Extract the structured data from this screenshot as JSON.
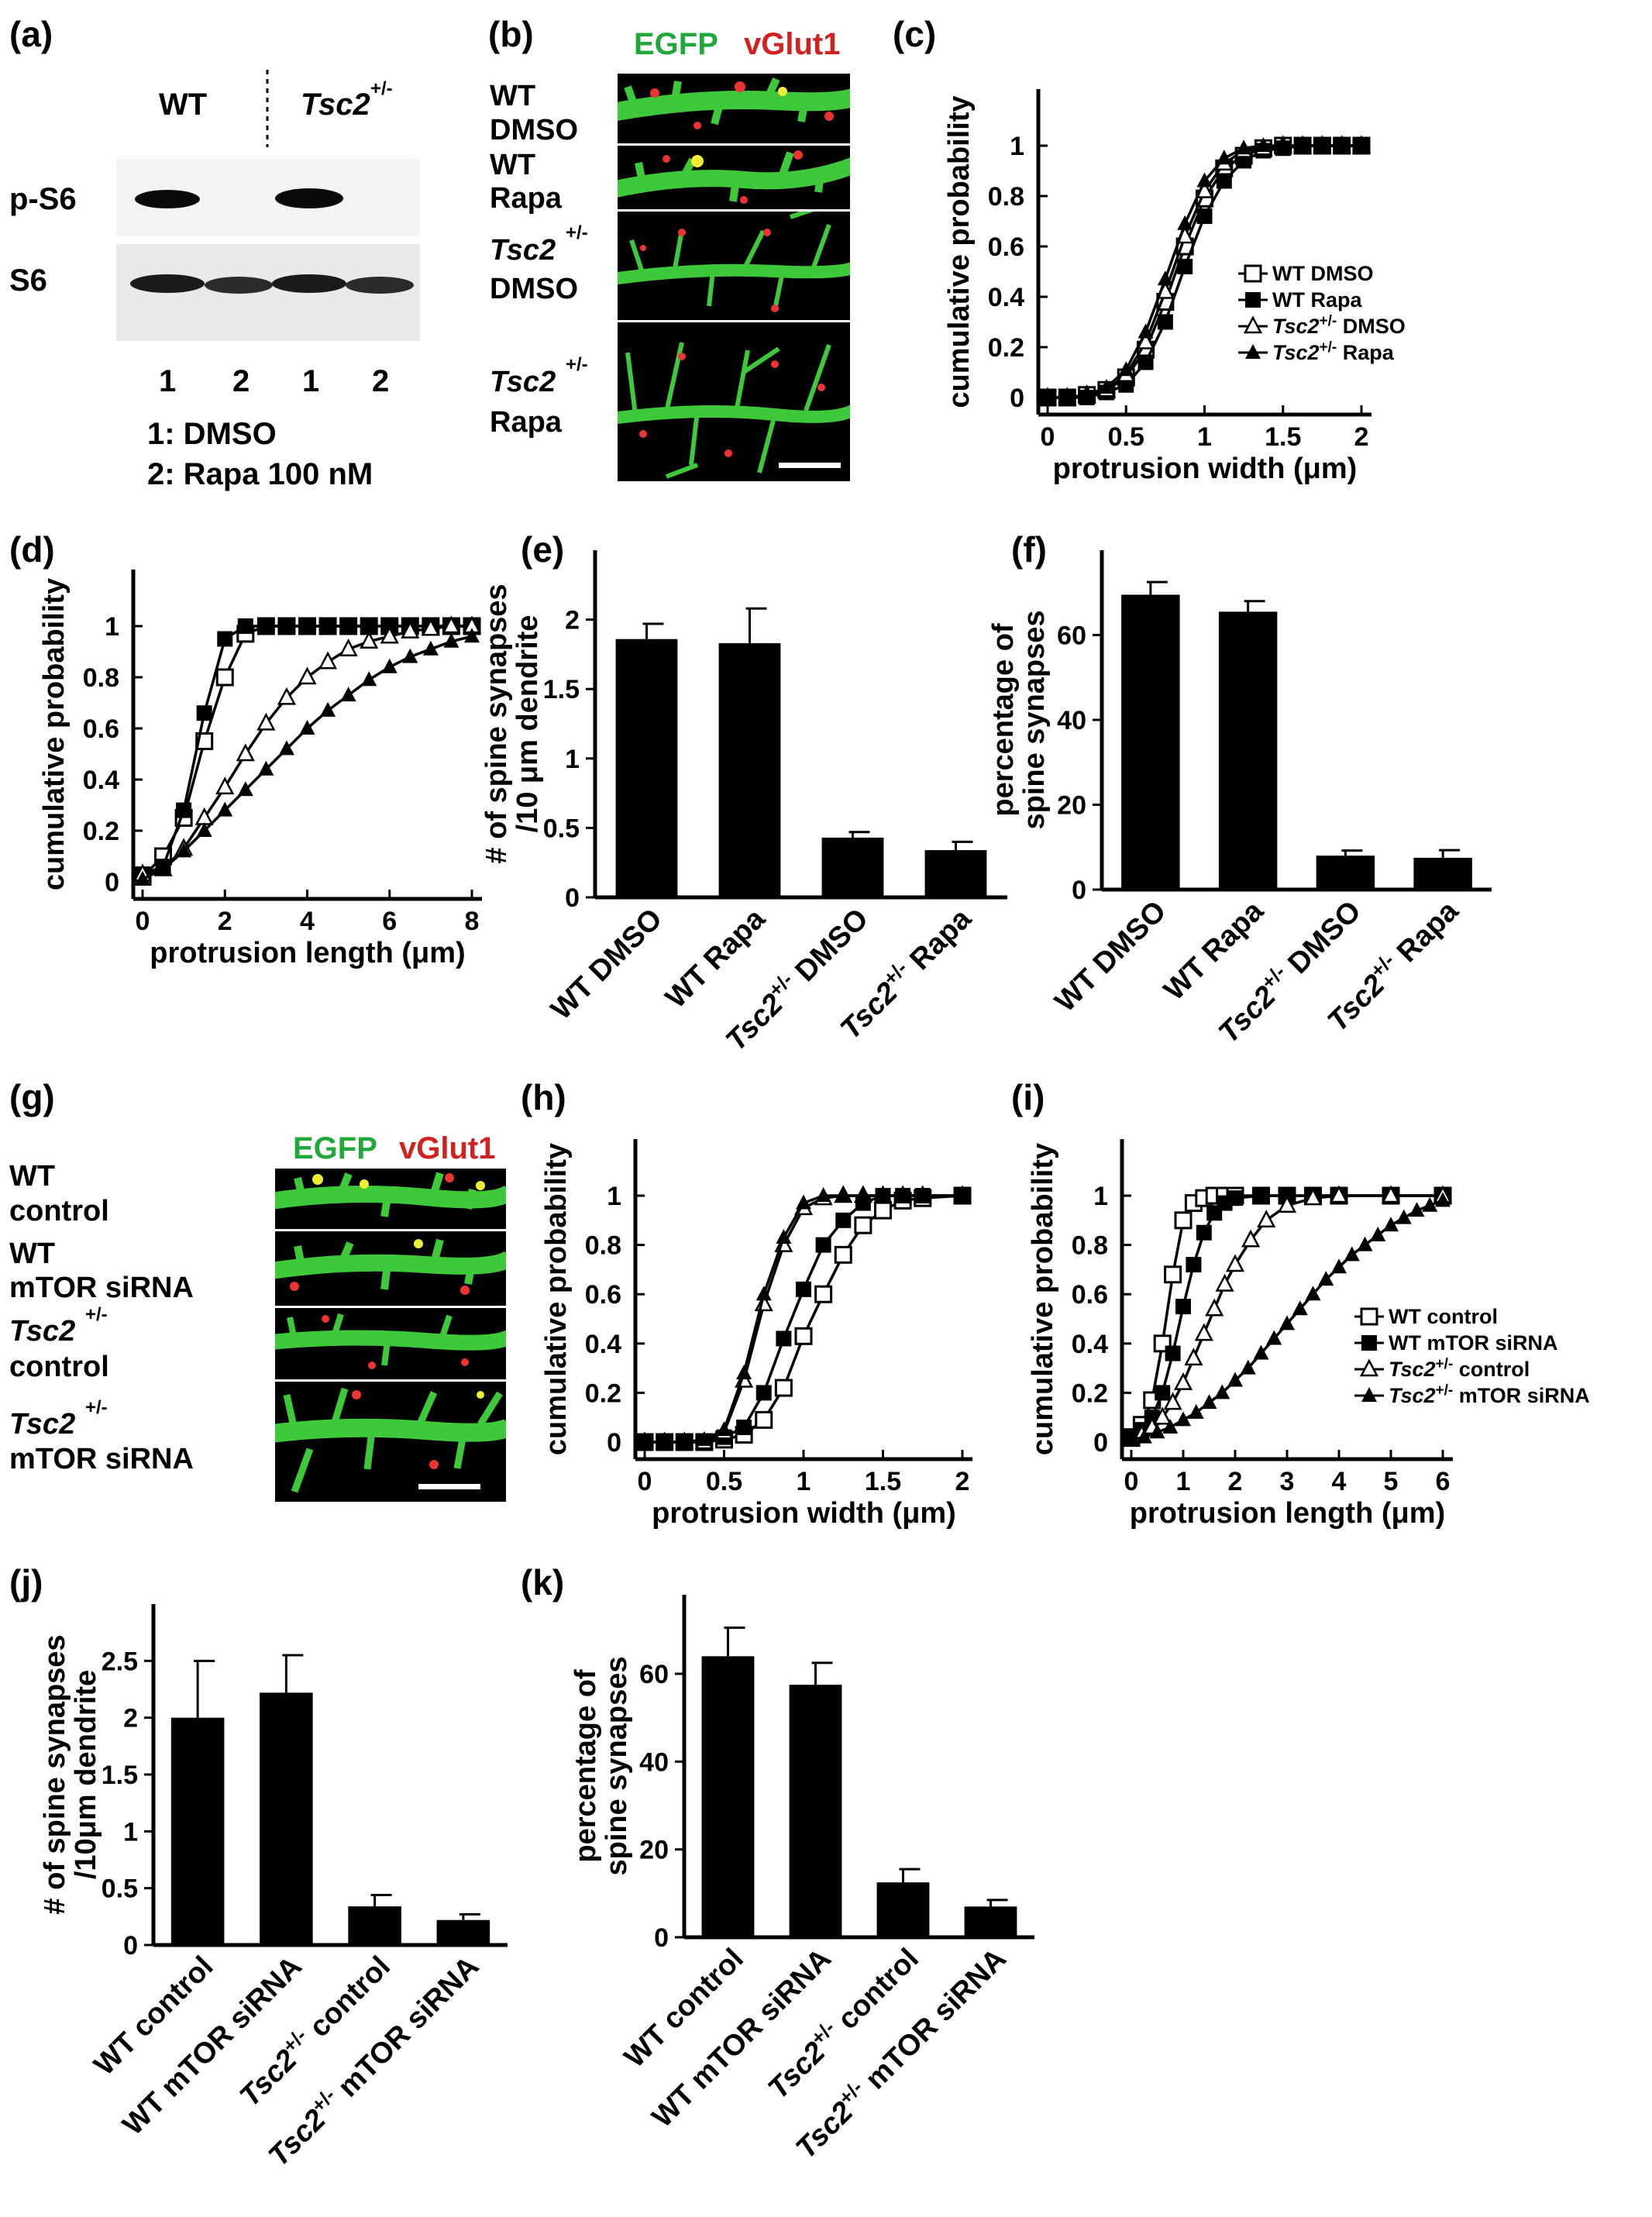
{
  "panels": {
    "a": {
      "letter": "(a)",
      "headers": [
        "WT",
        "Tsc2",
        "+/-"
      ],
      "rows": [
        "p-S6",
        "S6"
      ],
      "lanes": [
        "1",
        "2",
        "1",
        "2"
      ],
      "legend": [
        "1: DMSO",
        "2: Rapa 100 nM"
      ]
    },
    "b": {
      "letter": "(b)",
      "stain_green": "EGFP",
      "stain_red": "vGlut1",
      "conditions": [
        {
          "line1": "WT",
          "line2": "DMSO"
        },
        {
          "line1": "WT",
          "line2": "Rapa"
        },
        {
          "line1": "Tsc2",
          "sup": "+/-",
          "line2": "DMSO"
        },
        {
          "line1": "Tsc2",
          "sup": "+/-",
          "line2": "Rapa"
        }
      ]
    },
    "g": {
      "letter": "(g)",
      "stain_green": "EGFP",
      "stain_red": "vGlut1",
      "conditions": [
        {
          "line1": "WT",
          "line2": "control"
        },
        {
          "line1": "WT",
          "line2": "mTOR siRNA"
        },
        {
          "line1": "Tsc2",
          "sup": "+/-",
          "line2": "control"
        },
        {
          "line1": "Tsc2",
          "sup": "+/-",
          "line2": "mTOR siRNA"
        }
      ]
    },
    "c": {
      "letter": "(c)"
    },
    "d": {
      "letter": "(d)"
    },
    "e": {
      "letter": "(e)"
    },
    "f": {
      "letter": "(f)"
    },
    "h": {
      "letter": "(h)"
    },
    "i": {
      "letter": "(i)"
    },
    "j": {
      "letter": "(j)"
    },
    "k": {
      "letter": "(k)"
    }
  },
  "colors": {
    "egfp": "#22a83a",
    "vglut1": "#d32020",
    "bars": "#000000"
  },
  "chart_data": [
    {
      "id": "c",
      "type": "line",
      "xlabel": "protrusion width (μm)",
      "ylabel": "cumulative probability",
      "xlim": [
        0,
        2
      ],
      "ylim": [
        0,
        1
      ],
      "xticks": [
        "0",
        "0.5",
        "1",
        "1.5",
        "2"
      ],
      "xtick_vals": [
        0,
        0.5,
        1,
        1.5,
        2
      ],
      "yticks": [
        "0",
        "0.2",
        "0.4",
        "0.6",
        "0.8",
        "1"
      ],
      "ytick_vals": [
        0,
        0.2,
        0.4,
        0.6,
        0.8,
        1
      ],
      "legend_position": "right",
      "series": [
        {
          "name": "WT DMSO",
          "marker": "open-square",
          "x": [
            0,
            0.125,
            0.25,
            0.375,
            0.5,
            0.625,
            0.75,
            0.875,
            1,
            1.125,
            1.25,
            1.375,
            1.5,
            1.625,
            1.75,
            1.875,
            2
          ],
          "y": [
            0,
            0,
            0.01,
            0.03,
            0.08,
            0.19,
            0.38,
            0.6,
            0.79,
            0.91,
            0.96,
            0.99,
            1,
            1,
            1,
            1,
            1
          ]
        },
        {
          "name": "WT Rapa",
          "marker": "filled-square",
          "x": [
            0,
            0.125,
            0.25,
            0.375,
            0.5,
            0.625,
            0.75,
            0.875,
            1,
            1.125,
            1.25,
            1.375,
            1.5,
            1.625,
            1.75,
            1.875,
            2
          ],
          "y": [
            0,
            0,
            0,
            0.02,
            0.05,
            0.14,
            0.3,
            0.52,
            0.72,
            0.86,
            0.94,
            0.98,
            0.99,
            1,
            1,
            1,
            1
          ]
        },
        {
          "name": "Tsc2 +/- DMSO",
          "marker": "open-triangle",
          "x": [
            0,
            0.125,
            0.25,
            0.375,
            0.5,
            0.625,
            0.75,
            0.875,
            1,
            1.125,
            1.25,
            1.375,
            1.5,
            1.625,
            1.75,
            1.875,
            2
          ],
          "y": [
            0,
            0,
            0.01,
            0.03,
            0.09,
            0.22,
            0.42,
            0.64,
            0.82,
            0.93,
            0.98,
            0.99,
            1,
            1,
            1,
            1,
            1
          ]
        },
        {
          "name": "Tsc2 +/- Rapa",
          "marker": "filled-triangle",
          "x": [
            0,
            0.125,
            0.25,
            0.375,
            0.5,
            0.625,
            0.75,
            0.875,
            1,
            1.125,
            1.25,
            1.375,
            1.5,
            1.625,
            1.75,
            1.875,
            2
          ],
          "y": [
            0,
            0,
            0.01,
            0.04,
            0.11,
            0.26,
            0.47,
            0.69,
            0.86,
            0.95,
            0.99,
            1,
            1,
            1,
            1,
            1,
            1
          ]
        }
      ]
    },
    {
      "id": "d",
      "type": "line",
      "xlabel": "protrusion length (μm)",
      "ylabel": "cumulative probability",
      "xlim": [
        0,
        8
      ],
      "ylim": [
        0,
        1
      ],
      "xticks": [
        "0",
        "2",
        "4",
        "6",
        "8"
      ],
      "xtick_vals": [
        0,
        2,
        4,
        6,
        8
      ],
      "yticks": [
        "0",
        "0.2",
        "0.4",
        "0.6",
        "0.8",
        "1"
      ],
      "ytick_vals": [
        0,
        0.2,
        0.4,
        0.6,
        0.8,
        1
      ],
      "series": [
        {
          "name": "WT DMSO",
          "marker": "open-square",
          "x": [
            0,
            0.5,
            1,
            1.5,
            2,
            2.5,
            3,
            3.5,
            4,
            4.5,
            5,
            5.5,
            6,
            6.5,
            7,
            7.5,
            8
          ],
          "y": [
            0.02,
            0.1,
            0.25,
            0.55,
            0.8,
            0.97,
            1,
            1,
            1,
            1,
            1,
            1,
            1,
            1,
            1,
            1,
            1
          ]
        },
        {
          "name": "WT Rapa",
          "marker": "filled-square",
          "x": [
            0,
            0.5,
            1,
            1.5,
            2,
            2.5,
            3,
            3.5,
            4,
            4.5,
            5,
            5.5,
            6,
            6.5,
            7,
            7.5,
            8
          ],
          "y": [
            0.03,
            0.06,
            0.28,
            0.66,
            0.95,
            1,
            1,
            1,
            1,
            1,
            1,
            1,
            1,
            1,
            1,
            1,
            1
          ]
        },
        {
          "name": "Tsc2 +/- DMSO",
          "marker": "open-triangle",
          "x": [
            0,
            0.5,
            1,
            1.5,
            2,
            2.5,
            3,
            3.5,
            4,
            4.5,
            5,
            5.5,
            6,
            6.5,
            7,
            7.5,
            8
          ],
          "y": [
            0.03,
            0.05,
            0.13,
            0.25,
            0.37,
            0.5,
            0.62,
            0.72,
            0.8,
            0.86,
            0.91,
            0.94,
            0.96,
            0.98,
            0.99,
            1,
            1
          ]
        },
        {
          "name": "Tsc2 +/- Rapa",
          "marker": "filled-triangle",
          "x": [
            0,
            0.5,
            1,
            1.5,
            2,
            2.5,
            3,
            3.5,
            4,
            4.5,
            5,
            5.5,
            6,
            6.5,
            7,
            7.5,
            8
          ],
          "y": [
            0.01,
            0.05,
            0.12,
            0.2,
            0.28,
            0.36,
            0.44,
            0.52,
            0.6,
            0.67,
            0.73,
            0.79,
            0.84,
            0.88,
            0.91,
            0.94,
            0.96
          ]
        }
      ]
    },
    {
      "id": "e",
      "type": "bar",
      "ylabel_lines": [
        "# of spine synapses",
        "/10 μm dendrite"
      ],
      "categories": [
        "WT DMSO",
        "WT Rapa",
        "Tsc2 +/- DMSO",
        "Tsc2 +/- Rapa"
      ],
      "values": [
        1.86,
        1.83,
        0.43,
        0.34
      ],
      "errors": [
        0.11,
        0.25,
        0.04,
        0.06
      ],
      "ylim": [
        0,
        2.5
      ],
      "yticks": [
        "0",
        "0.5",
        "1",
        "1.5",
        "2"
      ],
      "ytick_vals": [
        0,
        0.5,
        1,
        1.5,
        2
      ]
    },
    {
      "id": "f",
      "type": "bar",
      "ylabel_lines": [
        "percentage of",
        "spine synapses"
      ],
      "categories": [
        "WT DMSO",
        "WT Rapa",
        "Tsc2 +/- DMSO",
        "Tsc2 +/- Rapa"
      ],
      "values": [
        69.5,
        65.5,
        8,
        7.5
      ],
      "errors": [
        3,
        2.5,
        1.2,
        1.8
      ],
      "ylim": [
        0,
        80
      ],
      "yticks": [
        "0",
        "20",
        "40",
        "60"
      ],
      "ytick_vals": [
        0,
        20,
        40,
        60
      ]
    },
    {
      "id": "h",
      "type": "line",
      "xlabel": "protrusion width (μm)",
      "ylabel": "cumulative probability",
      "xlim": [
        0,
        2
      ],
      "ylim": [
        0,
        1
      ],
      "xticks": [
        "0",
        "0.5",
        "1",
        "1.5",
        "2"
      ],
      "xtick_vals": [
        0,
        0.5,
        1,
        1.5,
        2
      ],
      "yticks": [
        "0",
        "0.2",
        "0.4",
        "0.6",
        "0.8",
        "1"
      ],
      "ytick_vals": [
        0,
        0.2,
        0.4,
        0.6,
        0.8,
        1
      ],
      "series": [
        {
          "name": "WT control",
          "marker": "open-square",
          "x": [
            0,
            0.125,
            0.25,
            0.375,
            0.5,
            0.625,
            0.75,
            0.875,
            1,
            1.125,
            1.25,
            1.375,
            1.5,
            1.625,
            1.75,
            2
          ],
          "y": [
            0,
            0,
            0,
            0,
            0.01,
            0.03,
            0.09,
            0.22,
            0.43,
            0.6,
            0.76,
            0.88,
            0.94,
            0.98,
            0.99,
            1
          ]
        },
        {
          "name": "WT mTOR siRNA",
          "marker": "filled-square",
          "x": [
            0,
            0.125,
            0.25,
            0.375,
            0.5,
            0.625,
            0.75,
            0.875,
            1,
            1.125,
            1.25,
            1.375,
            1.5,
            1.625,
            1.75,
            2
          ],
          "y": [
            0,
            0,
            0,
            0,
            0.02,
            0.06,
            0.2,
            0.42,
            0.62,
            0.8,
            0.9,
            0.97,
            1,
            1,
            1,
            1
          ]
        },
        {
          "name": "Tsc2 +/- control",
          "marker": "open-triangle",
          "x": [
            0,
            0.125,
            0.25,
            0.375,
            0.5,
            0.625,
            0.75,
            0.875,
            1,
            1.125,
            1.25,
            1.375,
            1.5,
            1.625,
            1.75,
            2
          ],
          "y": [
            0,
            0,
            0,
            0,
            0.04,
            0.25,
            0.56,
            0.8,
            0.95,
            0.99,
            1,
            1,
            1,
            1,
            1,
            1
          ]
        },
        {
          "name": "Tsc2 +/- mTOR siRNA",
          "marker": "filled-triangle",
          "x": [
            0,
            0.125,
            0.25,
            0.375,
            0.5,
            0.625,
            0.75,
            0.875,
            1,
            1.125,
            1.25,
            1.375,
            1.5,
            1.625,
            1.75,
            2
          ],
          "y": [
            0,
            0,
            0,
            0.01,
            0.05,
            0.28,
            0.6,
            0.83,
            0.97,
            1,
            1,
            1,
            1,
            1,
            1,
            1
          ]
        }
      ]
    },
    {
      "id": "i",
      "type": "line",
      "xlabel": "protrusion length (μm)",
      "ylabel": "cumulative probability",
      "xlim": [
        0,
        6
      ],
      "ylim": [
        0,
        1
      ],
      "xticks": [
        "0",
        "1",
        "2",
        "3",
        "4",
        "5",
        "6"
      ],
      "xtick_vals": [
        0,
        1,
        2,
        3,
        4,
        5,
        6
      ],
      "yticks": [
        "0",
        "0.2",
        "0.4",
        "0.6",
        "0.8",
        "1"
      ],
      "ytick_vals": [
        0,
        0.2,
        0.4,
        0.6,
        0.8,
        1
      ],
      "legend_position": "right",
      "series": [
        {
          "name": "WT control",
          "marker": "open-square",
          "x": [
            0,
            0.2,
            0.4,
            0.6,
            0.8,
            1,
            1.2,
            1.4,
            1.6,
            1.8,
            2,
            2.5,
            3,
            3.5,
            4,
            5,
            6
          ],
          "y": [
            0.02,
            0.07,
            0.17,
            0.4,
            0.68,
            0.9,
            0.97,
            0.99,
            1,
            1,
            1,
            1,
            1,
            1,
            1,
            1,
            1
          ]
        },
        {
          "name": "WT mTOR siRNA",
          "marker": "filled-square",
          "x": [
            0,
            0.2,
            0.4,
            0.6,
            0.8,
            1,
            1.2,
            1.4,
            1.6,
            1.8,
            2,
            2.5,
            3,
            3.5,
            4,
            5,
            6
          ],
          "y": [
            0.02,
            0.05,
            0.1,
            0.2,
            0.36,
            0.55,
            0.72,
            0.85,
            0.93,
            0.97,
            0.99,
            1,
            1,
            1,
            1,
            1,
            1
          ]
        },
        {
          "name": "Tsc2 +/- control",
          "marker": "open-triangle",
          "x": [
            0,
            0.2,
            0.4,
            0.6,
            0.8,
            1,
            1.2,
            1.4,
            1.6,
            1.8,
            2,
            2.3,
            2.6,
            3,
            3.5,
            4,
            5,
            6
          ],
          "y": [
            0.01,
            0.03,
            0.06,
            0.1,
            0.16,
            0.24,
            0.34,
            0.44,
            0.54,
            0.64,
            0.72,
            0.82,
            0.9,
            0.96,
            0.99,
            1,
            1,
            1
          ]
        },
        {
          "name": "Tsc2 +/- mTOR siRNA",
          "marker": "filled-triangle",
          "x": [
            0,
            0.25,
            0.5,
            0.75,
            1,
            1.25,
            1.5,
            1.75,
            2,
            2.25,
            2.5,
            2.75,
            3,
            3.25,
            3.5,
            3.75,
            4,
            4.25,
            4.5,
            4.75,
            5,
            5.25,
            5.5,
            5.75,
            6
          ],
          "y": [
            0.01,
            0.02,
            0.04,
            0.06,
            0.09,
            0.12,
            0.16,
            0.2,
            0.25,
            0.3,
            0.36,
            0.42,
            0.48,
            0.54,
            0.6,
            0.66,
            0.71,
            0.76,
            0.8,
            0.84,
            0.88,
            0.91,
            0.94,
            0.96,
            0.98
          ]
        }
      ]
    },
    {
      "id": "j",
      "type": "bar",
      "ylabel_lines": [
        "# of spine synapses",
        "/10μm dendrite"
      ],
      "categories": [
        "WT control",
        "WT mTOR siRNA",
        "Tsc2 +/- control",
        "Tsc2 +/- mTOR siRNA"
      ],
      "values": [
        2.0,
        2.22,
        0.34,
        0.22
      ],
      "errors": [
        0.5,
        0.33,
        0.1,
        0.05
      ],
      "ylim": [
        0,
        3
      ],
      "yticks": [
        "0",
        "0.5",
        "1",
        "1.5",
        "2",
        "2.5"
      ],
      "ytick_vals": [
        0,
        0.5,
        1,
        1.5,
        2,
        2.5
      ]
    },
    {
      "id": "k",
      "type": "bar",
      "ylabel_lines": [
        "percentage of",
        "spine synapses"
      ],
      "categories": [
        "WT control",
        "WT mTOR siRNA",
        "Tsc2 +/- control",
        "Tsc2 +/- mTOR siRNA"
      ],
      "values": [
        64,
        57.5,
        12.5,
        7
      ],
      "errors": [
        6.5,
        5,
        3,
        1.5
      ],
      "ylim": [
        0,
        78
      ],
      "yticks": [
        "0",
        "20",
        "40",
        "60"
      ],
      "ytick_vals": [
        0,
        20,
        40,
        60
      ]
    }
  ]
}
